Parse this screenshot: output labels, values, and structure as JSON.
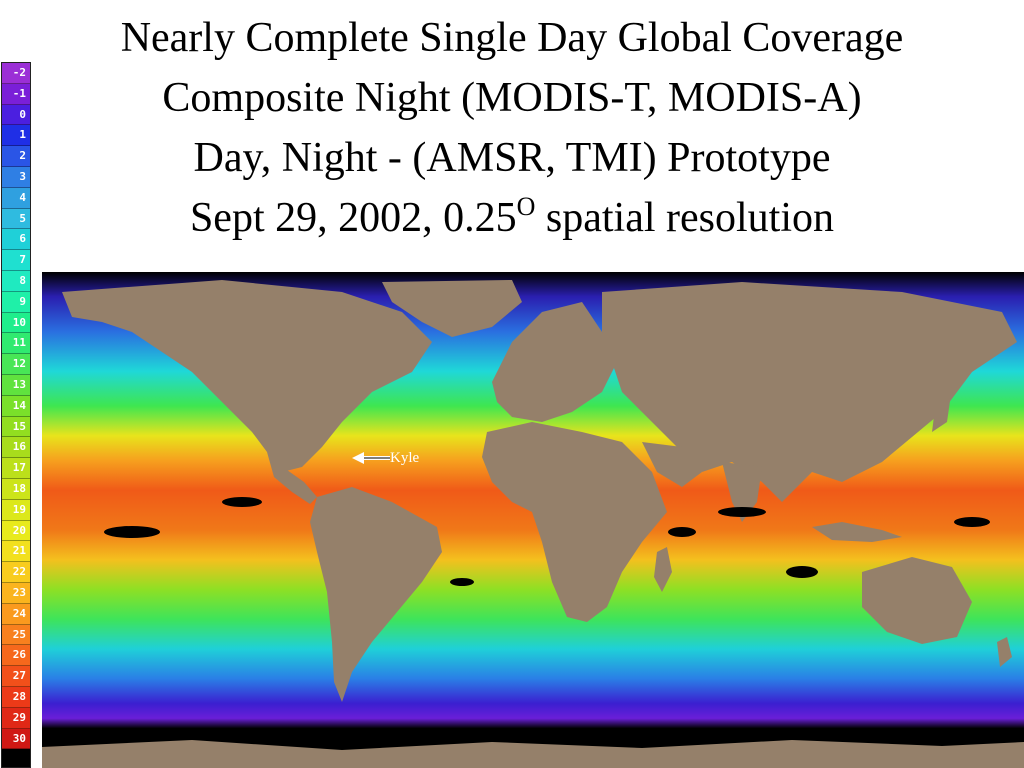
{
  "title": {
    "line1": "Nearly Complete Single Day Global Coverage",
    "line2": "Composite Night (MODIS-T, MODIS-A)",
    "line3": "Day, Night - (AMSR, TMI) Prototype",
    "line4_text": "Sept 29, 2002, 0.25",
    "line4_sup": "O",
    "line4_rest": " spatial resolution"
  },
  "colorbar": {
    "labels": [
      "-2",
      "-1",
      "0",
      "1",
      "2",
      "3",
      "4",
      "5",
      "6",
      "7",
      "8",
      "9",
      "10",
      "11",
      "12",
      "13",
      "14",
      "15",
      "16",
      "17",
      "18",
      "19",
      "20",
      "21",
      "22",
      "23",
      "24",
      "25",
      "26",
      "27",
      "28",
      "29",
      "30"
    ],
    "colors": [
      "#9b2fd6",
      "#7a1fd8",
      "#4b1fe0",
      "#1f2fe6",
      "#2a55e6",
      "#2f7fe4",
      "#2fa0e0",
      "#2fbbe0",
      "#1fd0d8",
      "#1fe0d0",
      "#1feac0",
      "#1ff0a8",
      "#1fee8c",
      "#30ea70",
      "#48e656",
      "#60e23e",
      "#7ae02a",
      "#92de20",
      "#a8dc1c",
      "#bce01a",
      "#cce41a",
      "#dce81a",
      "#e8ea1c",
      "#f2e01e",
      "#f8cc1e",
      "#fab41e",
      "#fa9a1e",
      "#f8801e",
      "#f6681c",
      "#f2501a",
      "#ec3a18",
      "#e02816",
      "#d01814"
    ]
  },
  "annotation": {
    "label": "Kyle",
    "colors": {
      "land": "#95806a",
      "nodata": "#000000"
    }
  },
  "colors": {
    "cold": "#3b1fd0",
    "cool": "#1fd8d8",
    "mild": "#3ee650",
    "warm": "#f0d820",
    "hot": "#f05014"
  }
}
